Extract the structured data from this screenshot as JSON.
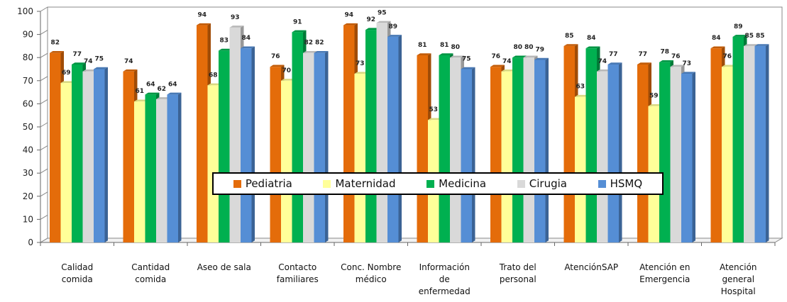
{
  "chart_data": {
    "type": "bar",
    "title": "",
    "xlabel": "",
    "ylabel": "",
    "ylim": [
      0,
      100
    ],
    "yticks": [
      "0",
      "10",
      "20",
      "30",
      "40",
      "50",
      "60",
      "70",
      "80",
      "90",
      "100"
    ],
    "grid": false,
    "legend_position": "center",
    "categories": [
      [
        "Calidad",
        "comida"
      ],
      [
        "Cantidad",
        "comida"
      ],
      [
        "Aseo de sala"
      ],
      [
        "Contacto",
        "familiares"
      ],
      [
        "Conc. Nombre",
        "médico"
      ],
      [
        "Información",
        "de",
        "enfermedad"
      ],
      [
        "Trato del",
        "personal"
      ],
      [
        "AtenciónSAP"
      ],
      [
        "Atención en",
        "Emergencia"
      ],
      [
        "Atención",
        "general",
        "Hospital"
      ]
    ],
    "series": [
      {
        "name": "Pediatria",
        "color": "#E46C0A",
        "values": [
          82,
          74,
          94,
          76,
          94,
          81,
          76,
          85,
          77,
          84
        ]
      },
      {
        "name": "Maternidad",
        "color": "#FFFF99",
        "values": [
          69,
          61,
          68,
          70,
          73,
          53,
          74,
          63,
          59,
          76
        ]
      },
      {
        "name": "Medicina",
        "color": "#00B050",
        "values": [
          77,
          64,
          83,
          91,
          92,
          81,
          80,
          84,
          78,
          89
        ]
      },
      {
        "name": "Cirugia",
        "color": "#D9D9D9",
        "values": [
          74,
          62,
          93,
          82,
          95,
          80,
          80,
          74,
          76,
          85
        ]
      },
      {
        "name": "HSMQ",
        "color": "#558ED5",
        "values": [
          75,
          64,
          84,
          82,
          89,
          75,
          79,
          77,
          73,
          85
        ]
      }
    ]
  }
}
